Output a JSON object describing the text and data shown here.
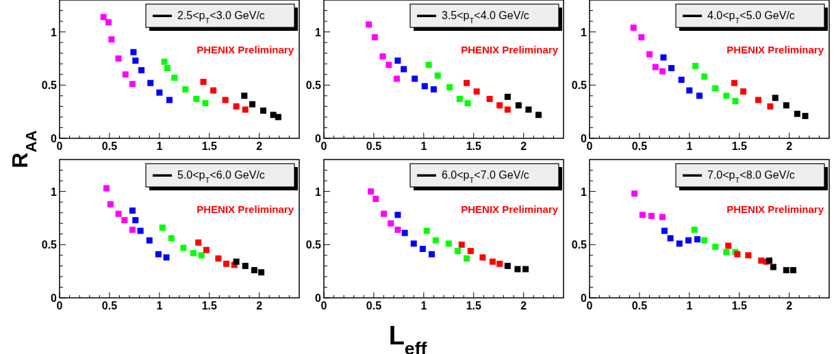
{
  "chart_data": [
    {
      "type": "scatter",
      "title": "2.5<p$_{T}$<3.0 GeV/c",
      "annotations": [
        "PHENIX Preliminary"
      ],
      "ylabel": "R$_{AA}$",
      "marker": "square",
      "xlim": [
        0,
        2.4
      ],
      "ylim": [
        0,
        1.3
      ],
      "xticks": [
        0,
        {
          "value": 0.1,
          "label": null
        },
        {
          "value": 0.2,
          "label": null
        },
        {
          "value": 0.3,
          "label": null
        },
        {
          "value": 0.4,
          "label": null
        },
        0.5,
        {
          "value": 0.6,
          "label": null
        },
        {
          "value": 0.7,
          "label": null
        },
        {
          "value": 0.8,
          "label": null
        },
        {
          "value": 0.9,
          "label": null
        },
        1,
        {
          "value": 1.1,
          "label": null
        },
        {
          "value": 1.2,
          "label": null
        },
        {
          "value": 1.3,
          "label": null
        },
        {
          "value": 1.4,
          "label": null
        },
        1.5,
        {
          "value": 1.6,
          "label": null
        },
        {
          "value": 1.7,
          "label": null
        },
        {
          "value": 1.8,
          "label": null
        },
        {
          "value": 1.9,
          "label": null
        },
        2,
        {
          "value": 2.1,
          "label": null
        },
        {
          "value": 2.2,
          "label": null
        },
        {
          "value": 2.3,
          "label": null
        }
      ],
      "yticks": [
        0,
        {
          "value": 0.1,
          "label": null
        },
        {
          "value": 0.2,
          "label": null
        },
        {
          "value": 0.3,
          "label": null
        },
        {
          "value": 0.4,
          "label": null
        },
        0.5,
        {
          "value": 0.6,
          "label": null
        },
        {
          "value": 0.7,
          "label": null
        },
        {
          "value": 0.8,
          "label": null
        },
        {
          "value": 0.9,
          "label": null
        },
        1,
        {
          "value": 1.1,
          "label": null
        },
        {
          "value": 1.2,
          "label": null
        }
      ],
      "series": [
        {
          "color": "#ff00ff",
          "x": [
            0.44,
            0.49,
            0.52,
            0.59,
            0.66,
            0.73
          ],
          "values": [
            1.14,
            1.09,
            0.93,
            0.75,
            0.6,
            0.51
          ]
        },
        {
          "color": "#0000ff",
          "x": [
            0.74,
            0.76,
            0.82,
            0.91,
            1.0,
            1.1
          ],
          "values": [
            0.81,
            0.73,
            0.64,
            0.52,
            0.43,
            0.36
          ]
        },
        {
          "color": "#00ff00",
          "x": [
            1.05,
            1.08,
            1.15,
            1.26,
            1.37,
            1.46
          ],
          "values": [
            0.72,
            0.66,
            0.57,
            0.46,
            0.37,
            0.33
          ]
        },
        {
          "color": "#ff0000",
          "x": [
            1.44,
            1.54,
            1.66,
            1.77,
            1.86
          ],
          "values": [
            0.53,
            0.45,
            0.36,
            0.3,
            0.27
          ]
        },
        {
          "color": "#000000",
          "x": [
            1.85,
            1.93,
            2.04,
            2.14,
            2.19
          ],
          "values": [
            0.4,
            0.32,
            0.26,
            0.22,
            0.2
          ]
        }
      ]
    },
    {
      "type": "scatter",
      "title": "3.5<p$_{T}$<4.0 GeV/c",
      "annotations": [
        "PHENIX Preliminary"
      ],
      "marker": "square",
      "xlim": [
        0,
        2.4
      ],
      "ylim": [
        0,
        1.3
      ],
      "xticks": [
        0,
        {
          "value": 0.1,
          "label": null
        },
        {
          "value": 0.2,
          "label": null
        },
        {
          "value": 0.3,
          "label": null
        },
        {
          "value": 0.4,
          "label": null
        },
        0.5,
        {
          "value": 0.6,
          "label": null
        },
        {
          "value": 0.7,
          "label": null
        },
        {
          "value": 0.8,
          "label": null
        },
        {
          "value": 0.9,
          "label": null
        },
        1,
        {
          "value": 1.1,
          "label": null
        },
        {
          "value": 1.2,
          "label": null
        },
        {
          "value": 1.3,
          "label": null
        },
        {
          "value": 1.4,
          "label": null
        },
        1.5,
        {
          "value": 1.6,
          "label": null
        },
        {
          "value": 1.7,
          "label": null
        },
        {
          "value": 1.8,
          "label": null
        },
        {
          "value": 1.9,
          "label": null
        },
        2,
        {
          "value": 2.1,
          "label": null
        },
        {
          "value": 2.2,
          "label": null
        },
        {
          "value": 2.3,
          "label": null
        }
      ],
      "yticks": [
        0,
        {
          "value": 0.1,
          "label": null
        },
        {
          "value": 0.2,
          "label": null
        },
        {
          "value": 0.3,
          "label": null
        },
        {
          "value": 0.4,
          "label": null
        },
        0.5,
        {
          "value": 0.6,
          "label": null
        },
        {
          "value": 0.7,
          "label": null
        },
        {
          "value": 0.8,
          "label": null
        },
        {
          "value": 0.9,
          "label": null
        },
        1,
        {
          "value": 1.1,
          "label": null
        },
        {
          "value": 1.2,
          "label": null
        }
      ],
      "series": [
        {
          "color": "#ff00ff",
          "x": [
            0.45,
            0.51,
            0.59,
            0.65,
            0.73
          ],
          "values": [
            1.07,
            0.95,
            0.77,
            0.69,
            0.56
          ]
        },
        {
          "color": "#0000ff",
          "x": [
            0.74,
            0.8,
            0.91,
            1.01,
            1.1
          ],
          "values": [
            0.73,
            0.65,
            0.56,
            0.49,
            0.46
          ]
        },
        {
          "color": "#00ff00",
          "x": [
            1.05,
            1.14,
            1.26,
            1.36,
            1.44
          ],
          "values": [
            0.69,
            0.59,
            0.48,
            0.37,
            0.33
          ]
        },
        {
          "color": "#ff0000",
          "x": [
            1.43,
            1.53,
            1.66,
            1.76,
            1.84
          ],
          "values": [
            0.52,
            0.44,
            0.37,
            0.31,
            0.27
          ]
        },
        {
          "color": "#000000",
          "x": [
            1.84,
            1.95,
            2.05,
            2.15
          ],
          "values": [
            0.39,
            0.31,
            0.27,
            0.22
          ]
        }
      ]
    },
    {
      "type": "scatter",
      "title": "4.0<p$_{T}$<5.0 GeV/c",
      "annotations": [
        "PHENIX Preliminary"
      ],
      "marker": "square",
      "xlim": [
        0,
        2.4
      ],
      "ylim": [
        0,
        1.3
      ],
      "xticks": [
        0,
        {
          "value": 0.1,
          "label": null
        },
        {
          "value": 0.2,
          "label": null
        },
        {
          "value": 0.3,
          "label": null
        },
        {
          "value": 0.4,
          "label": null
        },
        0.5,
        {
          "value": 0.6,
          "label": null
        },
        {
          "value": 0.7,
          "label": null
        },
        {
          "value": 0.8,
          "label": null
        },
        {
          "value": 0.9,
          "label": null
        },
        1,
        {
          "value": 1.1,
          "label": null
        },
        {
          "value": 1.2,
          "label": null
        },
        {
          "value": 1.3,
          "label": null
        },
        {
          "value": 1.4,
          "label": null
        },
        1.5,
        {
          "value": 1.6,
          "label": null
        },
        {
          "value": 1.7,
          "label": null
        },
        {
          "value": 1.8,
          "label": null
        },
        {
          "value": 1.9,
          "label": null
        },
        2,
        {
          "value": 2.1,
          "label": null
        },
        {
          "value": 2.2,
          "label": null
        },
        {
          "value": 2.3,
          "label": null
        }
      ],
      "yticks": [
        0,
        {
          "value": 0.1,
          "label": null
        },
        {
          "value": 0.2,
          "label": null
        },
        {
          "value": 0.3,
          "label": null
        },
        {
          "value": 0.4,
          "label": null
        },
        0.5,
        {
          "value": 0.6,
          "label": null
        },
        {
          "value": 0.7,
          "label": null
        },
        {
          "value": 0.8,
          "label": null
        },
        {
          "value": 0.9,
          "label": null
        },
        1,
        {
          "value": 1.1,
          "label": null
        },
        {
          "value": 1.2,
          "label": null
        }
      ],
      "series": [
        {
          "color": "#ff00ff",
          "x": [
            0.44,
            0.52,
            0.6,
            0.66,
            0.73
          ],
          "values": [
            1.04,
            0.95,
            0.79,
            0.67,
            0.63
          ]
        },
        {
          "color": "#0000ff",
          "x": [
            0.74,
            0.82,
            0.92,
            1.0,
            1.1
          ],
          "values": [
            0.76,
            0.66,
            0.55,
            0.45,
            0.4
          ]
        },
        {
          "color": "#00ff00",
          "x": [
            1.06,
            1.15,
            1.26,
            1.37,
            1.46
          ],
          "values": [
            0.68,
            0.58,
            0.47,
            0.4,
            0.35
          ]
        },
        {
          "color": "#ff0000",
          "x": [
            1.45,
            1.54,
            1.69,
            1.81
          ],
          "values": [
            0.52,
            0.44,
            0.36,
            0.3
          ]
        },
        {
          "color": "#000000",
          "x": [
            1.86,
            1.97,
            2.08,
            2.16
          ],
          "values": [
            0.38,
            0.31,
            0.23,
            0.21
          ]
        }
      ]
    },
    {
      "type": "scatter",
      "title": "5.0<p$_{T}$<6.0 GeV/c",
      "annotations": [
        "PHENIX Preliminary"
      ],
      "marker": "square",
      "xlim": [
        0,
        2.4
      ],
      "ylim": [
        0,
        1.3
      ],
      "xticks": [
        0,
        {
          "value": 0.1,
          "label": null
        },
        {
          "value": 0.2,
          "label": null
        },
        {
          "value": 0.3,
          "label": null
        },
        {
          "value": 0.4,
          "label": null
        },
        0.5,
        {
          "value": 0.6,
          "label": null
        },
        {
          "value": 0.7,
          "label": null
        },
        {
          "value": 0.8,
          "label": null
        },
        {
          "value": 0.9,
          "label": null
        },
        1,
        {
          "value": 1.1,
          "label": null
        },
        {
          "value": 1.2,
          "label": null
        },
        {
          "value": 1.3,
          "label": null
        },
        {
          "value": 1.4,
          "label": null
        },
        1.5,
        {
          "value": 1.6,
          "label": null
        },
        {
          "value": 1.7,
          "label": null
        },
        {
          "value": 1.8,
          "label": null
        },
        {
          "value": 1.9,
          "label": null
        },
        2,
        {
          "value": 2.1,
          "label": null
        },
        {
          "value": 2.2,
          "label": null
        },
        {
          "value": 2.3,
          "label": null
        }
      ],
      "yticks": [
        0,
        {
          "value": 0.1,
          "label": null
        },
        {
          "value": 0.2,
          "label": null
        },
        {
          "value": 0.3,
          "label": null
        },
        {
          "value": 0.4,
          "label": null
        },
        0.5,
        {
          "value": 0.6,
          "label": null
        },
        {
          "value": 0.7,
          "label": null
        },
        {
          "value": 0.8,
          "label": null
        },
        {
          "value": 0.9,
          "label": null
        },
        1,
        {
          "value": 1.1,
          "label": null
        },
        {
          "value": 1.2,
          "label": null
        }
      ],
      "series": [
        {
          "color": "#ff00ff",
          "x": [
            0.47,
            0.51,
            0.59,
            0.65,
            0.73
          ],
          "values": [
            1.03,
            0.88,
            0.79,
            0.73,
            0.64
          ]
        },
        {
          "color": "#0000ff",
          "x": [
            0.73,
            0.76,
            0.81,
            0.9,
            0.99,
            1.07
          ],
          "values": [
            0.82,
            0.73,
            0.63,
            0.54,
            0.41,
            0.38
          ]
        },
        {
          "color": "#00ff00",
          "x": [
            1.03,
            1.12,
            1.24,
            1.34,
            1.42
          ],
          "values": [
            0.66,
            0.56,
            0.47,
            0.42,
            0.4
          ]
        },
        {
          "color": "#ff0000",
          "x": [
            1.39,
            1.47,
            1.59,
            1.67,
            1.75
          ],
          "values": [
            0.52,
            0.45,
            0.37,
            0.32,
            0.31
          ]
        },
        {
          "color": "#000000",
          "x": [
            1.77,
            1.86,
            1.95,
            2.02
          ],
          "values": [
            0.34,
            0.3,
            0.26,
            0.24
          ]
        }
      ]
    },
    {
      "type": "scatter",
      "title": "6.0<p$_{T}$<7.0 GeV/c",
      "annotations": [
        "PHENIX Preliminary"
      ],
      "xlabel": "L$_{eff}$",
      "marker": "square",
      "xlim": [
        0,
        2.4
      ],
      "ylim": [
        0,
        1.3
      ],
      "xticks": [
        0,
        {
          "value": 0.1,
          "label": null
        },
        {
          "value": 0.2,
          "label": null
        },
        {
          "value": 0.3,
          "label": null
        },
        {
          "value": 0.4,
          "label": null
        },
        0.5,
        {
          "value": 0.6,
          "label": null
        },
        {
          "value": 0.7,
          "label": null
        },
        {
          "value": 0.8,
          "label": null
        },
        {
          "value": 0.9,
          "label": null
        },
        1,
        {
          "value": 1.1,
          "label": null
        },
        {
          "value": 1.2,
          "label": null
        },
        {
          "value": 1.3,
          "label": null
        },
        {
          "value": 1.4,
          "label": null
        },
        1.5,
        {
          "value": 1.6,
          "label": null
        },
        {
          "value": 1.7,
          "label": null
        },
        {
          "value": 1.8,
          "label": null
        },
        {
          "value": 1.9,
          "label": null
        },
        2,
        {
          "value": 2.1,
          "label": null
        },
        {
          "value": 2.2,
          "label": null
        },
        {
          "value": 2.3,
          "label": null
        }
      ],
      "yticks": [
        0,
        {
          "value": 0.1,
          "label": null
        },
        {
          "value": 0.2,
          "label": null
        },
        {
          "value": 0.3,
          "label": null
        },
        {
          "value": 0.4,
          "label": null
        },
        0.5,
        {
          "value": 0.6,
          "label": null
        },
        {
          "value": 0.7,
          "label": null
        },
        {
          "value": 0.8,
          "label": null
        },
        {
          "value": 0.9,
          "label": null
        },
        1,
        {
          "value": 1.1,
          "label": null
        },
        {
          "value": 1.2,
          "label": null
        }
      ],
      "series": [
        {
          "color": "#ff00ff",
          "x": [
            0.47,
            0.52,
            0.6,
            0.67,
            0.74
          ],
          "values": [
            1.0,
            0.93,
            0.79,
            0.7,
            0.64
          ]
        },
        {
          "color": "#0000ff",
          "x": [
            0.74,
            0.81,
            0.9,
            0.99,
            1.08
          ],
          "values": [
            0.78,
            0.61,
            0.51,
            0.46,
            0.41
          ]
        },
        {
          "color": "#00ff00",
          "x": [
            1.03,
            1.12,
            1.25,
            1.34,
            1.43
          ],
          "values": [
            0.63,
            0.54,
            0.51,
            0.44,
            0.37
          ]
        },
        {
          "color": "#ff0000",
          "x": [
            1.38,
            1.47,
            1.59,
            1.69,
            1.76
          ],
          "values": [
            0.5,
            0.44,
            0.38,
            0.34,
            0.32
          ]
        },
        {
          "color": "#000000",
          "x": [
            1.84,
            1.94,
            2.02
          ],
          "values": [
            0.3,
            0.27,
            0.27
          ]
        }
      ]
    },
    {
      "type": "scatter",
      "title": "7.0<p$_{T}$<8.0 GeV/c",
      "annotations": [
        "PHENIX Preliminary"
      ],
      "marker": "square",
      "xlim": [
        0,
        2.4
      ],
      "ylim": [
        0,
        1.3
      ],
      "xticks": [
        0,
        {
          "value": 0.1,
          "label": null
        },
        {
          "value": 0.2,
          "label": null
        },
        {
          "value": 0.3,
          "label": null
        },
        {
          "value": 0.4,
          "label": null
        },
        0.5,
        {
          "value": 0.6,
          "label": null
        },
        {
          "value": 0.7,
          "label": null
        },
        {
          "value": 0.8,
          "label": null
        },
        {
          "value": 0.9,
          "label": null
        },
        1,
        {
          "value": 1.1,
          "label": null
        },
        {
          "value": 1.2,
          "label": null
        },
        {
          "value": 1.3,
          "label": null
        },
        {
          "value": 1.4,
          "label": null
        },
        1.5,
        {
          "value": 1.6,
          "label": null
        },
        {
          "value": 1.7,
          "label": null
        },
        {
          "value": 1.8,
          "label": null
        },
        {
          "value": 1.9,
          "label": null
        },
        2,
        {
          "value": 2.1,
          "label": null
        },
        {
          "value": 2.2,
          "label": null
        },
        {
          "value": 2.3,
          "label": null
        }
      ],
      "yticks": [
        0,
        {
          "value": 0.1,
          "label": null
        },
        {
          "value": 0.2,
          "label": null
        },
        {
          "value": 0.3,
          "label": null
        },
        {
          "value": 0.4,
          "label": null
        },
        0.5,
        {
          "value": 0.6,
          "label": null
        },
        {
          "value": 0.7,
          "label": null
        },
        {
          "value": 0.8,
          "label": null
        },
        {
          "value": 0.9,
          "label": null
        },
        1,
        {
          "value": 1.1,
          "label": null
        },
        {
          "value": 1.2,
          "label": null
        }
      ],
      "series": [
        {
          "color": "#ff00ff",
          "x": [
            0.45,
            0.53,
            0.62,
            0.73
          ],
          "values": [
            0.98,
            0.78,
            0.77,
            0.76
          ]
        },
        {
          "color": "#0000ff",
          "x": [
            0.75,
            0.81,
            0.9,
            0.99,
            1.08
          ],
          "values": [
            0.63,
            0.56,
            0.51,
            0.54,
            0.55
          ]
        },
        {
          "color": "#00ff00",
          "x": [
            1.05,
            1.15,
            1.26,
            1.37,
            1.46
          ],
          "values": [
            0.64,
            0.54,
            0.48,
            0.43,
            0.43
          ]
        },
        {
          "color": "#ff0000",
          "x": [
            1.39,
            1.48,
            1.59,
            1.72,
            1.77
          ],
          "values": [
            0.49,
            0.41,
            0.4,
            0.35,
            0.34
          ]
        },
        {
          "color": "#000000",
          "x": [
            1.8,
            1.84,
            1.97,
            2.04
          ],
          "values": [
            0.35,
            0.29,
            0.26,
            0.26
          ]
        }
      ]
    }
  ]
}
